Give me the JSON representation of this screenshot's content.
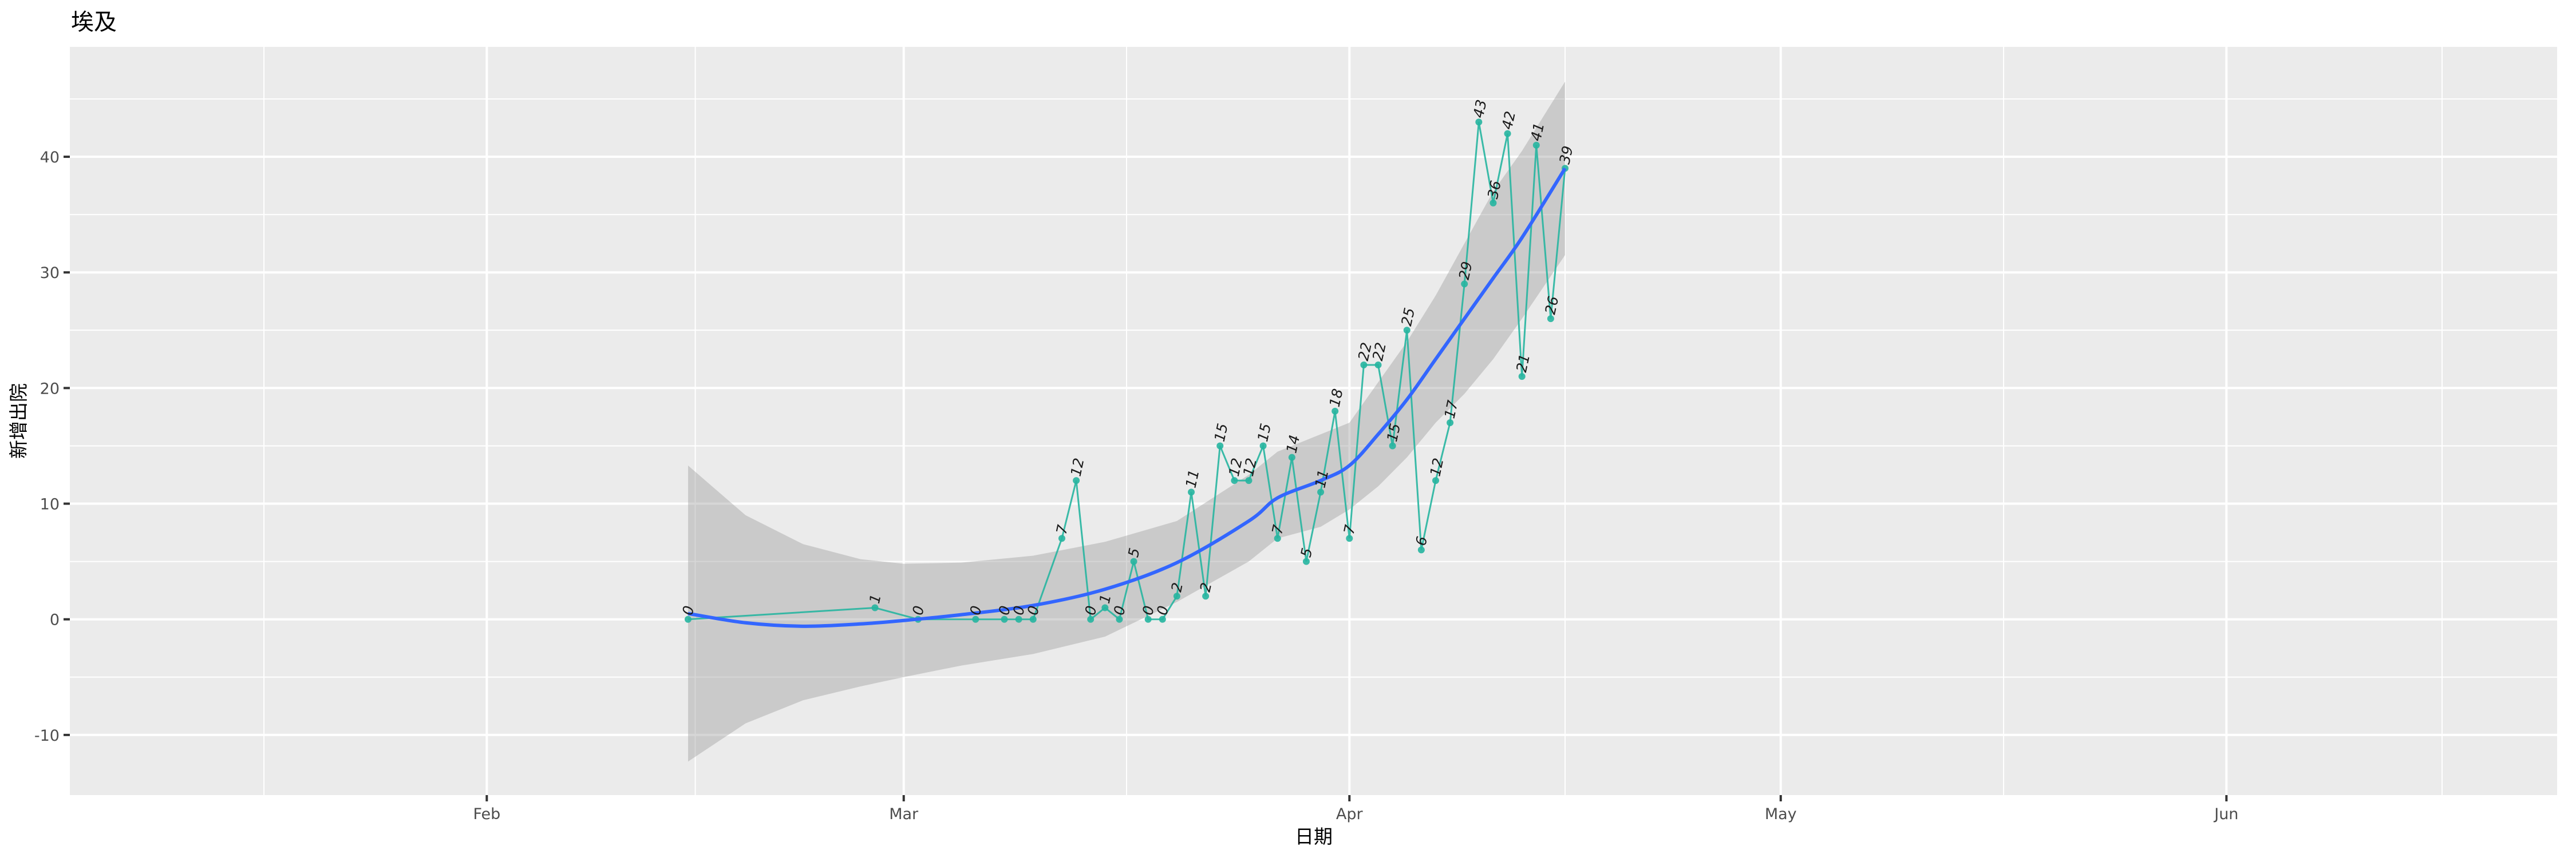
{
  "chart_data": {
    "type": "line",
    "title": "埃及",
    "xlabel": "日期",
    "ylabel": "新增出院",
    "xlim": [
      "2020-01-03",
      "2020-06-24"
    ],
    "ylim": [
      -15.2,
      49.5
    ],
    "grid": true,
    "x_ticks": [
      {
        "date": "2020-02-01",
        "label": "Feb"
      },
      {
        "date": "2020-03-01",
        "label": "Mar"
      },
      {
        "date": "2020-04-01",
        "label": "Apr"
      },
      {
        "date": "2020-05-01",
        "label": "May"
      },
      {
        "date": "2020-06-01",
        "label": "Jun"
      }
    ],
    "y_ticks": [
      -10,
      0,
      10,
      20,
      30,
      40
    ],
    "series": [
      {
        "name": "新增出院",
        "color": "#26b5a0",
        "x": [
          "2020-02-15",
          "2020-02-28",
          "2020-03-02",
          "2020-03-06",
          "2020-03-08",
          "2020-03-09",
          "2020-03-10",
          "2020-03-12",
          "2020-03-13",
          "2020-03-14",
          "2020-03-15",
          "2020-03-16",
          "2020-03-17",
          "2020-03-18",
          "2020-03-19",
          "2020-03-20",
          "2020-03-21",
          "2020-03-22",
          "2020-03-23",
          "2020-03-24",
          "2020-03-25",
          "2020-03-26",
          "2020-03-27",
          "2020-03-28",
          "2020-03-29",
          "2020-03-30",
          "2020-03-31",
          "2020-04-01",
          "2020-04-02",
          "2020-04-03",
          "2020-04-04",
          "2020-04-05",
          "2020-04-06",
          "2020-04-07",
          "2020-04-08",
          "2020-04-09",
          "2020-04-10",
          "2020-04-11",
          "2020-04-12",
          "2020-04-13",
          "2020-04-14",
          "2020-04-15",
          "2020-04-16"
        ],
        "values": [
          0,
          1,
          0,
          0,
          0,
          0,
          0,
          7,
          12,
          0,
          1,
          0,
          5,
          0,
          0,
          2,
          11,
          2,
          15,
          12,
          12,
          15,
          7,
          14,
          5,
          11,
          18,
          7,
          22,
          22,
          15,
          25,
          6,
          12,
          17,
          29,
          43,
          36,
          42,
          21,
          41,
          26,
          39
        ],
        "labels": [
          "0",
          "1",
          "0",
          "0",
          "0",
          "0",
          "0",
          "7",
          "12",
          "0",
          "1",
          "0",
          "5",
          "0",
          "0",
          "2",
          "11",
          "2",
          "15",
          "12",
          "12",
          "15",
          "7",
          "14",
          "5",
          "11",
          "18",
          "7",
          "22",
          "22",
          "15",
          "25",
          "6",
          "12",
          "17",
          "29",
          "43",
          "36",
          "42",
          "21",
          "41",
          "26",
          "39"
        ]
      }
    ],
    "smooth": {
      "name": "loess",
      "color": "#3366FF",
      "band_color": "#999999",
      "x": [
        "2020-02-15",
        "2020-02-19",
        "2020-02-23",
        "2020-02-27",
        "2020-03-01",
        "2020-03-05",
        "2020-03-10",
        "2020-03-15",
        "2020-03-20",
        "2020-03-25",
        "2020-03-27",
        "2020-03-30",
        "2020-04-01",
        "2020-04-03",
        "2020-04-05",
        "2020-04-07",
        "2020-04-09",
        "2020-04-11",
        "2020-04-13",
        "2020-04-16"
      ],
      "fit": [
        0.5,
        -0.3,
        -0.6,
        -0.4,
        -0.1,
        0.4,
        1.2,
        2.6,
        4.9,
        8.5,
        10.5,
        12.0,
        13.3,
        16.0,
        19.0,
        22.5,
        26.0,
        29.5,
        33.0,
        39.0
      ],
      "lower": [
        -12.3,
        -9.0,
        -7.0,
        -5.8,
        -5.0,
        -4.0,
        -3.0,
        -1.5,
        1.5,
        5.0,
        7.0,
        8.0,
        9.5,
        11.5,
        14.0,
        17.0,
        19.5,
        22.5,
        26.0,
        31.5
      ],
      "upper": [
        13.3,
        9.0,
        6.5,
        5.2,
        4.8,
        4.9,
        5.5,
        6.7,
        8.5,
        12.5,
        14.5,
        16.0,
        17.0,
        20.5,
        24.0,
        28.0,
        32.5,
        37.0,
        40.5,
        46.5
      ]
    }
  }
}
